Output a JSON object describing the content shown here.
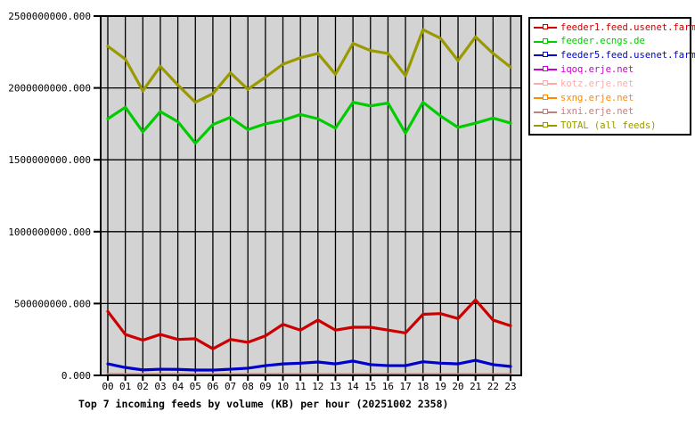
{
  "title": "Top 7 incoming feeds by volume (KB) per hour (20251002 2358)",
  "colors": {
    "page_bg": "#ffffff",
    "plot_bg": "#d3d3d3",
    "grid": "#000000",
    "axis_text": "#000000"
  },
  "chart_data": {
    "type": "line",
    "title": "Top 7 incoming feeds by volume (KB) per hour (20251002 2358)",
    "xlabel": "",
    "ylabel": "",
    "x": [
      "00",
      "01",
      "02",
      "03",
      "04",
      "05",
      "06",
      "07",
      "08",
      "09",
      "10",
      "11",
      "12",
      "13",
      "14",
      "15",
      "16",
      "17",
      "18",
      "19",
      "20",
      "21",
      "22",
      "23"
    ],
    "ylim": [
      0,
      2500000000
    ],
    "y_ticks": [
      0,
      500000000,
      1000000000,
      1500000000,
      2000000000,
      2500000000
    ],
    "y_tick_labels": [
      "0.000",
      "500000000.000",
      "1000000000.000",
      "1500000000.000",
      "2000000000.000",
      "2500000000.000"
    ],
    "grid": true,
    "legend_position": "outside-top-right",
    "series": [
      {
        "name": "feeder1.feed.usenet.farm",
        "color": "#cc0000",
        "values": [
          445000000,
          285000000,
          245000000,
          285000000,
          250000000,
          255000000,
          185000000,
          250000000,
          230000000,
          275000000,
          355000000,
          315000000,
          385000000,
          315000000,
          335000000,
          335000000,
          315000000,
          295000000,
          425000000,
          430000000,
          395000000,
          525000000,
          385000000,
          345000000
        ]
      },
      {
        "name": "feeder.ecngs.de",
        "color": "#00cc00",
        "values": [
          1785000000,
          1865000000,
          1695000000,
          1835000000,
          1765000000,
          1615000000,
          1745000000,
          1795000000,
          1710000000,
          1750000000,
          1775000000,
          1815000000,
          1785000000,
          1720000000,
          1900000000,
          1875000000,
          1895000000,
          1685000000,
          1900000000,
          1805000000,
          1725000000,
          1755000000,
          1790000000,
          1755000000
        ]
      },
      {
        "name": "feeder5.feed.usenet.farm",
        "color": "#0000cc",
        "values": [
          80000000,
          55000000,
          38000000,
          43000000,
          42000000,
          37000000,
          37000000,
          43000000,
          50000000,
          68000000,
          80000000,
          85000000,
          93000000,
          80000000,
          100000000,
          75000000,
          68000000,
          68000000,
          95000000,
          85000000,
          80000000,
          105000000,
          75000000,
          62000000
        ]
      },
      {
        "name": "iqoq.erje.net",
        "color": "#cc00cc",
        "values": [
          5000000,
          5000000,
          5000000,
          5000000,
          5000000,
          5000000,
          5000000,
          5000000,
          5000000,
          5000000,
          5000000,
          5000000,
          5000000,
          5000000,
          5000000,
          5000000,
          5000000,
          5000000,
          5000000,
          5000000,
          5000000,
          5000000,
          5000000,
          5000000
        ]
      },
      {
        "name": "kotz.erje.net",
        "color": "#ffaaaa",
        "values": [
          5000000,
          5000000,
          5000000,
          5000000,
          5000000,
          5000000,
          5000000,
          5000000,
          5000000,
          5000000,
          5000000,
          5000000,
          5000000,
          5000000,
          5000000,
          5000000,
          5000000,
          5000000,
          5000000,
          5000000,
          5000000,
          5000000,
          5000000,
          5000000
        ]
      },
      {
        "name": "sxng.erje.net",
        "color": "#ff8800",
        "values": [
          5000000,
          5000000,
          5000000,
          5000000,
          5000000,
          5000000,
          5000000,
          5000000,
          5000000,
          5000000,
          5000000,
          5000000,
          5000000,
          5000000,
          5000000,
          5000000,
          5000000,
          5000000,
          5000000,
          5000000,
          5000000,
          5000000,
          5000000,
          5000000
        ]
      },
      {
        "name": "ixni.erje.net",
        "color": "#c08080",
        "values": [
          5000000,
          5000000,
          5000000,
          5000000,
          5000000,
          5000000,
          5000000,
          5000000,
          5000000,
          5000000,
          5000000,
          5000000,
          5000000,
          5000000,
          5000000,
          5000000,
          5000000,
          5000000,
          5000000,
          5000000,
          5000000,
          5000000,
          5000000,
          5000000
        ]
      },
      {
        "name": "TOTAL (all feeds)",
        "color": "#999900",
        "values": [
          2290000000,
          2200000000,
          1980000000,
          2150000000,
          2020000000,
          1900000000,
          1960000000,
          2105000000,
          1990000000,
          2075000000,
          2165000000,
          2210000000,
          2240000000,
          2095000000,
          2310000000,
          2260000000,
          2240000000,
          2085000000,
          2405000000,
          2345000000,
          2190000000,
          2355000000,
          2240000000,
          2145000000
        ]
      }
    ]
  }
}
